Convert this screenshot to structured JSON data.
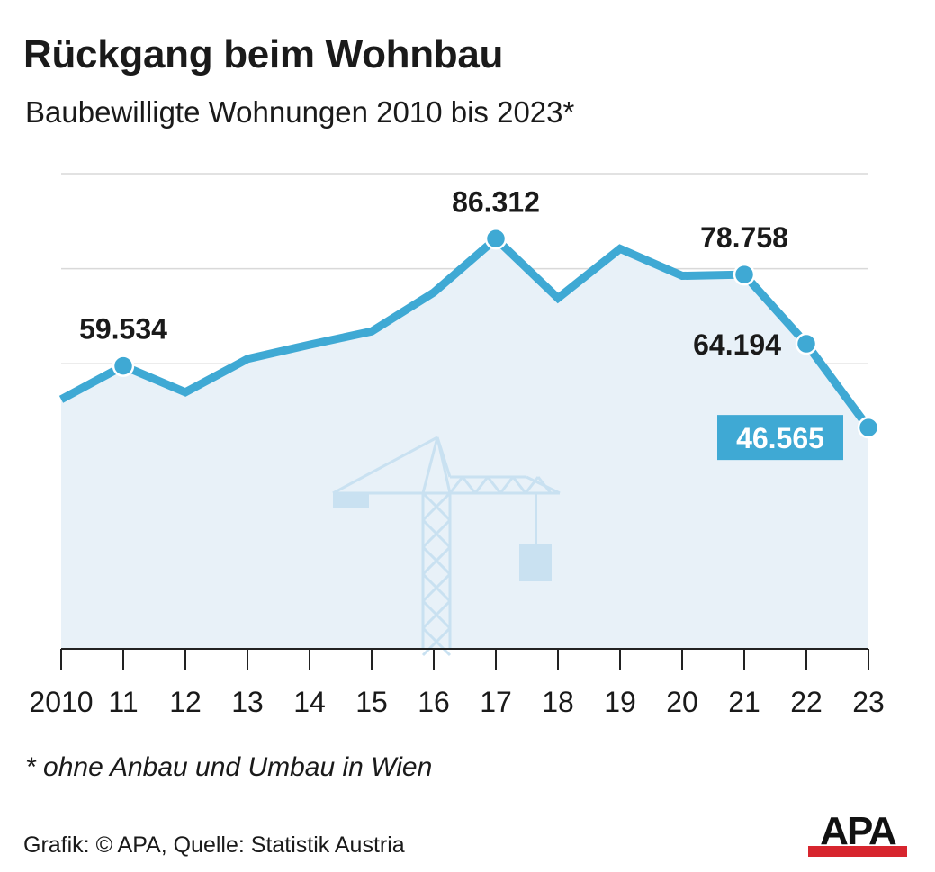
{
  "header": {
    "title": "Rückgang beim Wohnbau",
    "subtitle": "Baubewilligte Wohnungen 2010 bis 2023*"
  },
  "footer": {
    "footnote": "* ohne Anbau und Umbau in Wien",
    "source": "Grafik: © APA, Quelle: Statistik Austria",
    "logo_text": "APA"
  },
  "colors": {
    "line": "#3fa9d4",
    "area": "#e8f1f8",
    "grid": "#d9d9d9",
    "crane": "#c9e1f1",
    "highlight_bg": "#3fa9d4",
    "text": "#1a1a1a"
  },
  "icons": [
    "crane-icon",
    "apa-logo"
  ],
  "chart_data": {
    "type": "area",
    "title": "Rückgang beim Wohnbau",
    "subtitle": "Baubewilligte Wohnungen 2010 bis 2023*",
    "x": [
      "2010",
      "11",
      "12",
      "13",
      "14",
      "15",
      "16",
      "17",
      "18",
      "19",
      "20",
      "21",
      "22",
      "23"
    ],
    "series": [
      {
        "values": [
          52500,
          59534,
          54000,
          61000,
          64000,
          66800,
          75000,
          86312,
          73800,
          84200,
          78500,
          78758,
          64194,
          46565
        ]
      }
    ],
    "labeled_points": [
      {
        "x": "11",
        "label": "59.534",
        "marker": true,
        "highlight": false
      },
      {
        "x": "17",
        "label": "86.312",
        "marker": true,
        "highlight": false
      },
      {
        "x": "21",
        "label": "78.758",
        "marker": true,
        "highlight": false
      },
      {
        "x": "22",
        "label": "64.194",
        "marker": true,
        "highlight": false
      },
      {
        "x": "23",
        "label": "46.565",
        "marker": true,
        "highlight": true
      }
    ],
    "ylim": [
      0,
      100000
    ],
    "y_gridlines": [
      20000,
      40000,
      60000,
      80000,
      100000
    ],
    "y_tick_labels_shown": false,
    "grid": true,
    "legend": "none"
  }
}
